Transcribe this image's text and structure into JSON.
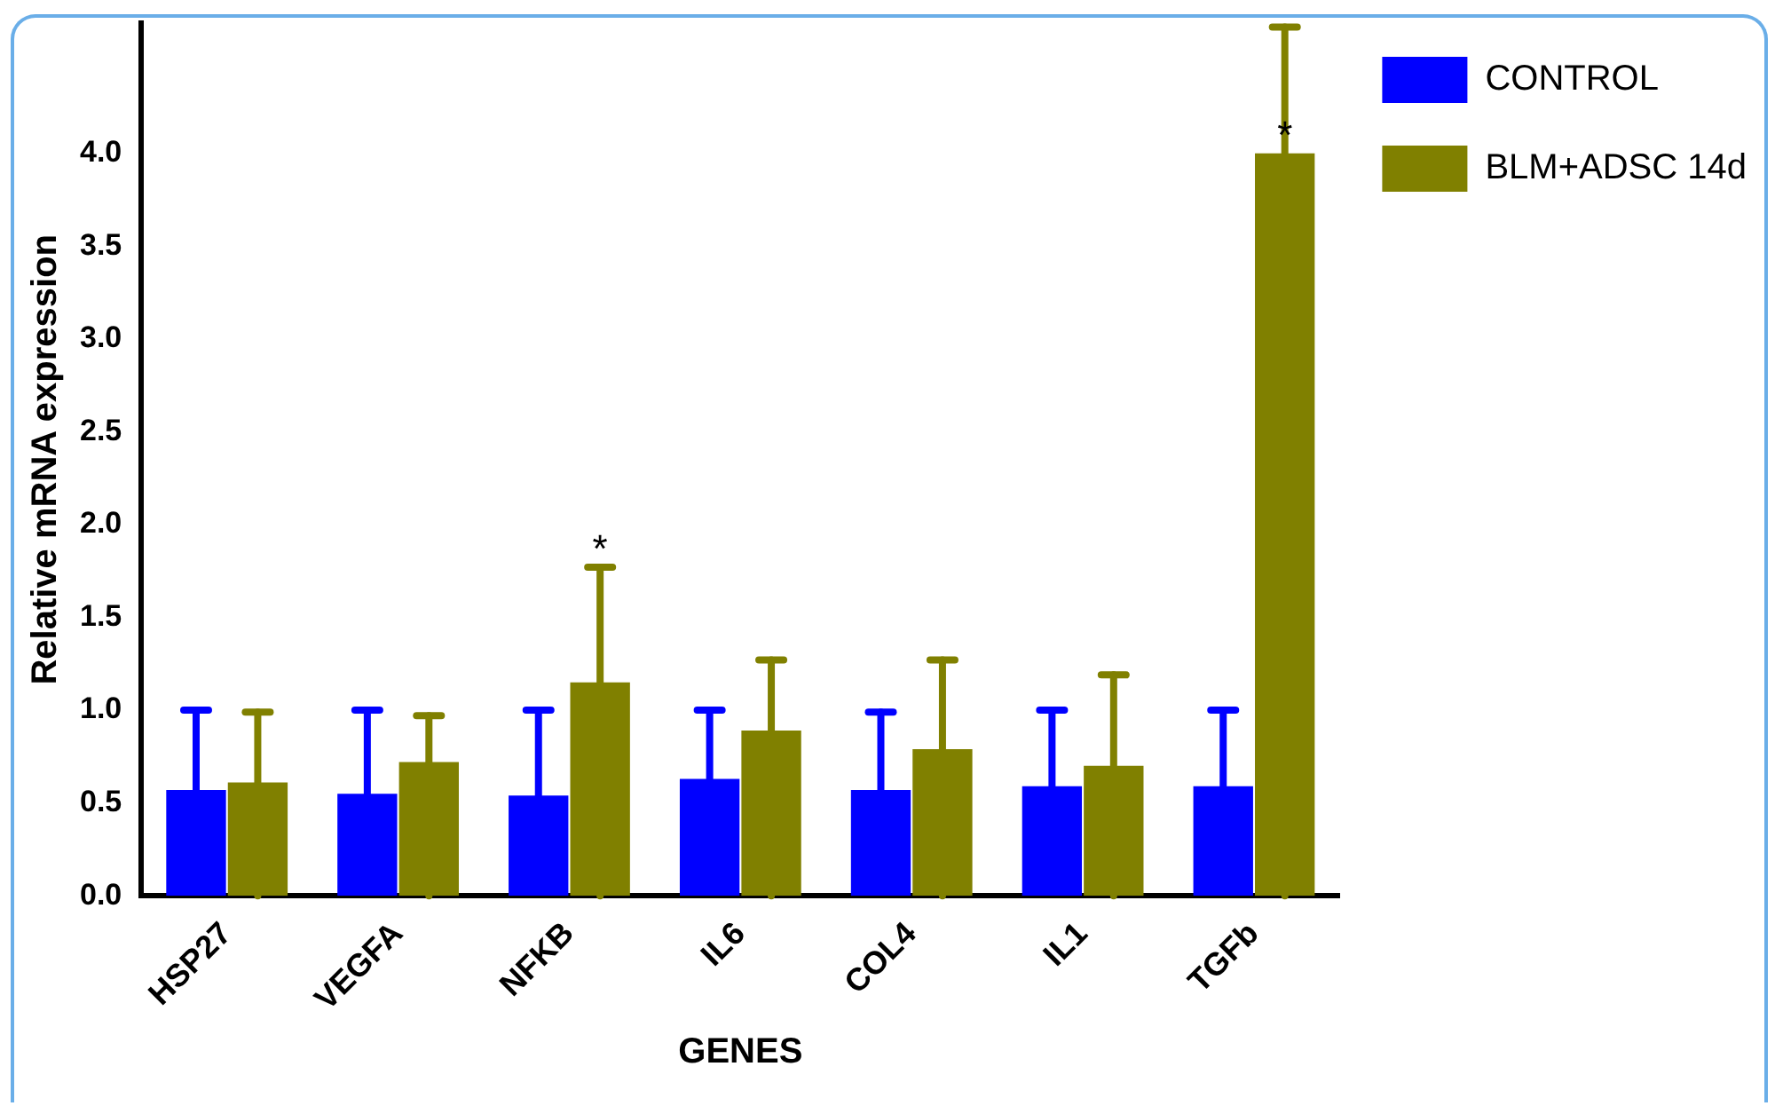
{
  "chart_data": {
    "type": "bar",
    "xlabel": "GENES",
    "ylabel": "Relative mRNA expression",
    "categories": [
      "HSP27",
      "VEGFA",
      "NFKB",
      "IL6",
      "COL4",
      "IL1",
      "TGFb"
    ],
    "series": [
      {
        "name": "CONTROL",
        "color": "#0000ff",
        "values": [
          0.57,
          0.55,
          0.54,
          0.63,
          0.57,
          0.59,
          0.59
        ],
        "errors": [
          0.43,
          0.45,
          0.46,
          0.37,
          0.42,
          0.41,
          0.41
        ]
      },
      {
        "name": "BLM+ADSC 14d",
        "color": "#808000",
        "values": [
          0.61,
          0.72,
          1.15,
          0.89,
          0.79,
          0.7,
          4.0
        ],
        "errors": [
          [
            0,
            0.99
          ],
          [
            0,
            0.97
          ],
          [
            0,
            1.77
          ],
          [
            0,
            1.27
          ],
          [
            0,
            1.27
          ],
          [
            0,
            1.19
          ],
          [
            0,
            4.68
          ]
        ]
      }
    ],
    "ylim": [
      0,
      4.7
    ],
    "yticks": [
      {
        "value": 0,
        "label": "0.0"
      },
      {
        "value": 0.5,
        "label": "0.5"
      },
      {
        "value": 1,
        "label": "1.0"
      },
      {
        "value": 1.5,
        "label": "1.5"
      },
      {
        "value": 2,
        "label": "2.0"
      },
      {
        "value": 2.5,
        "label": "2.5"
      },
      {
        "value": 3,
        "label": "3.0"
      },
      {
        "value": 3.5,
        "label": "3.5"
      },
      {
        "value": 4,
        "label": "4.0"
      }
    ],
    "grid": false,
    "legend": "top right",
    "annotations": [
      {
        "text": "*",
        "x": "NFKB",
        "y": 1.77
      },
      {
        "text": "*",
        "x": "TGFb",
        "y": 4.0
      }
    ]
  }
}
